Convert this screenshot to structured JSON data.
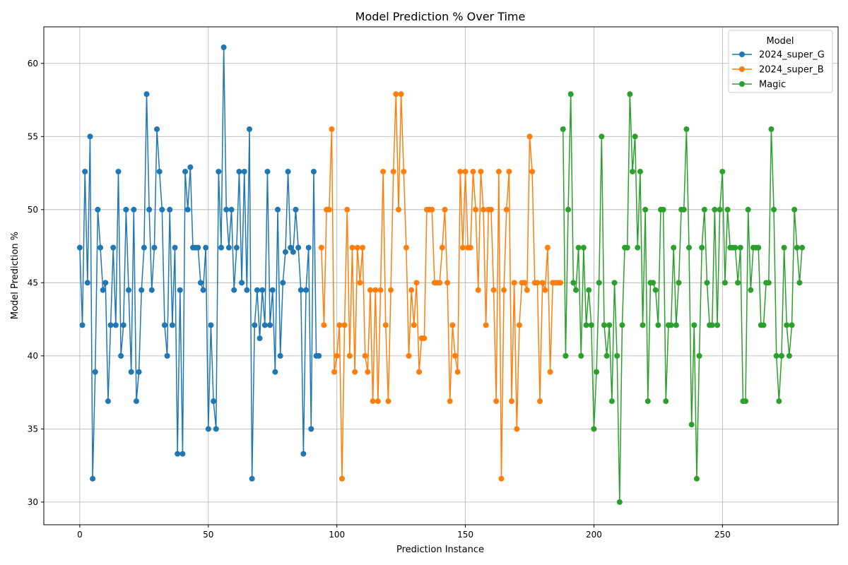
{
  "chart_data": {
    "type": "line",
    "title": "Model Prediction % Over Time",
    "xlabel": "Prediction Instance",
    "ylabel": "Model Prediction %",
    "xlim": [
      -14,
      295
    ],
    "ylim": [
      28.45,
      62.5
    ],
    "xticks": [
      0,
      50,
      100,
      150,
      200,
      250
    ],
    "yticks": [
      30,
      35,
      40,
      45,
      50,
      55,
      60
    ],
    "grid": true,
    "legend": {
      "title": "Model",
      "placement": "top-right"
    },
    "series": [
      {
        "name": "2024_super_G",
        "color": "#1f77b4",
        "x_start": 0,
        "values": [
          47.4,
          42.1,
          52.6,
          45.0,
          55.0,
          31.6,
          38.9,
          50.0,
          47.4,
          44.5,
          45.0,
          36.9,
          42.1,
          47.4,
          42.1,
          52.6,
          40.0,
          42.1,
          50.0,
          44.5,
          38.9,
          50.0,
          36.9,
          38.9,
          44.5,
          47.4,
          57.9,
          50.0,
          44.5,
          47.4,
          55.5,
          52.6,
          50.0,
          42.1,
          40.0,
          50.0,
          42.1,
          47.4,
          33.3,
          44.5,
          33.3,
          52.6,
          50.0,
          52.9,
          47.4,
          47.4,
          47.4,
          45.0,
          44.5,
          47.4,
          35.0,
          42.1,
          36.9,
          35.0,
          52.6,
          47.4,
          61.1,
          50.0,
          47.4,
          50.0,
          44.5,
          47.4,
          52.6,
          45.0,
          52.6,
          44.5,
          55.5,
          31.6,
          42.1,
          44.5,
          41.2,
          44.5,
          42.1,
          52.6,
          42.1,
          44.5,
          38.9,
          50.0,
          40.0,
          45.0,
          47.1,
          52.6,
          47.4,
          47.1,
          50.0,
          47.4,
          44.5,
          33.3,
          44.5,
          47.4,
          35.0,
          52.6,
          40.0,
          40.0
        ]
      },
      {
        "name": "2024_super_B",
        "color": "#ff7f0e",
        "x_start": 94,
        "values": [
          47.4,
          42.1,
          50.0,
          50.0,
          55.5,
          38.9,
          40.0,
          42.1,
          31.6,
          42.1,
          50.0,
          40.0,
          47.4,
          38.9,
          47.4,
          45.0,
          47.4,
          40.0,
          38.9,
          44.5,
          36.9,
          44.5,
          36.9,
          44.5,
          52.6,
          42.1,
          36.9,
          44.5,
          52.6,
          57.9,
          50.0,
          57.9,
          52.6,
          47.4,
          40.0,
          44.5,
          42.1,
          45.0,
          38.9,
          41.2,
          41.2,
          50.0,
          50.0,
          50.0,
          45.0,
          45.0,
          45.0,
          47.4,
          50.0,
          45.0,
          36.9,
          42.1,
          40.0,
          38.9,
          52.6,
          47.4,
          52.6,
          47.4,
          47.4,
          52.6,
          50.0,
          44.5,
          52.6,
          50.0,
          42.1,
          50.0,
          50.0,
          44.5,
          36.9,
          52.6,
          31.6,
          44.5,
          50.0,
          52.6,
          36.9,
          45.0,
          35.0,
          42.1,
          45.0,
          45.0,
          44.5,
          55.0,
          52.6,
          45.0,
          45.0,
          36.9,
          45.0,
          44.5,
          47.4,
          38.9,
          45.0,
          45.0,
          45.0,
          45.0
        ]
      },
      {
        "name": "Magic",
        "color": "#2ca02c",
        "x_start": 188,
        "values": [
          55.5,
          40.0,
          50.0,
          57.9,
          45.0,
          44.5,
          47.4,
          40.0,
          47.4,
          42.1,
          44.5,
          42.1,
          35.0,
          38.9,
          45.0,
          55.0,
          42.1,
          40.0,
          42.1,
          36.9,
          45.0,
          40.0,
          30.0,
          42.1,
          47.4,
          47.4,
          57.9,
          52.6,
          55.0,
          47.4,
          52.6,
          42.1,
          50.0,
          36.9,
          45.0,
          45.0,
          44.5,
          42.1,
          50.0,
          50.0,
          36.9,
          42.1,
          42.1,
          47.4,
          42.1,
          45.0,
          50.0,
          50.0,
          55.5,
          47.4,
          35.3,
          42.1,
          31.6,
          40.0,
          47.4,
          50.0,
          45.0,
          42.1,
          42.1,
          50.0,
          42.1,
          50.0,
          52.6,
          45.0,
          50.0,
          47.4,
          47.4,
          47.4,
          45.0,
          47.4,
          36.9,
          36.9,
          50.0,
          44.5,
          47.4,
          47.4,
          47.4,
          42.1,
          42.1,
          45.0,
          45.0,
          55.5,
          50.0,
          40.0,
          36.9,
          40.0,
          47.4,
          42.1,
          40.0,
          42.1,
          50.0,
          47.4,
          45.0,
          47.4
        ]
      }
    ]
  }
}
